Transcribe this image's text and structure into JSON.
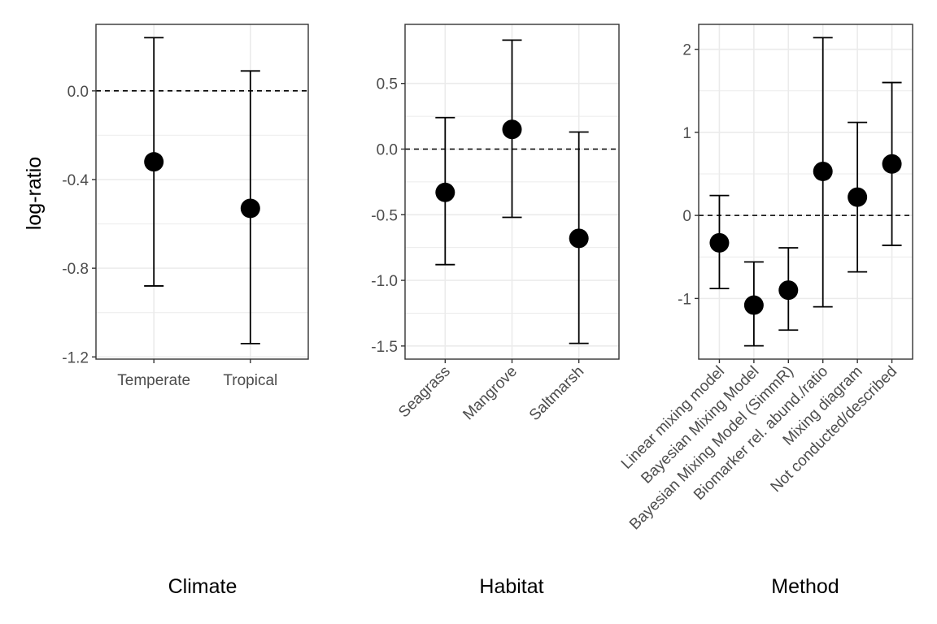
{
  "ylabel": "log-ratio",
  "chart_data": [
    {
      "type": "scatter",
      "error_bars": true,
      "xlabel": "Climate",
      "categories": [
        "Temperate",
        "Tropical"
      ],
      "values": [
        -0.32,
        -0.53
      ],
      "lower": [
        -0.88,
        -1.14
      ],
      "upper": [
        0.24,
        0.09
      ],
      "ylim": [
        -1.21,
        0.3
      ],
      "yticks": [
        -1.2,
        -0.8,
        -0.4,
        0.0
      ],
      "ytick_labels": [
        "-1.2",
        "-0.8",
        "-0.4",
        "0.0"
      ],
      "reference_line": 0,
      "x_label_rotation": 0,
      "grid": true
    },
    {
      "type": "scatter",
      "error_bars": true,
      "xlabel": "Habitat",
      "categories": [
        "Seagrass",
        "Mangrove",
        "Saltmarsh"
      ],
      "values": [
        -0.33,
        0.15,
        -0.68
      ],
      "lower": [
        -0.88,
        -0.52,
        -1.48
      ],
      "upper": [
        0.24,
        0.83,
        0.13
      ],
      "ylim": [
        -1.6,
        0.95
      ],
      "yticks": [
        -1.5,
        -1.0,
        -0.5,
        0.0,
        0.5
      ],
      "ytick_labels": [
        "-1.5",
        "-1.0",
        "-0.5",
        "0.0",
        "0.5"
      ],
      "reference_line": 0,
      "x_label_rotation": -45,
      "grid": true
    },
    {
      "type": "scatter",
      "error_bars": true,
      "xlabel": "Method",
      "categories": [
        "Linear mixing model",
        "Bayesian Mixing Model",
        "Bayesian Mixing Model (SimmR)",
        "Biomarker rel. abund./ratio",
        "Mixing diagram",
        "Not conducted/described"
      ],
      "values": [
        -0.33,
        -1.08,
        -0.9,
        0.53,
        0.22,
        0.62
      ],
      "lower": [
        -0.88,
        -1.57,
        -1.38,
        -1.1,
        -0.68,
        -0.36
      ],
      "upper": [
        0.24,
        -0.56,
        -0.39,
        2.14,
        1.12,
        1.6
      ],
      "ylim": [
        -1.73,
        2.3
      ],
      "yticks": [
        -1,
        0,
        1,
        2
      ],
      "ytick_labels": [
        "-1",
        "0",
        "1",
        "2"
      ],
      "reference_line": 0,
      "x_label_rotation": -45,
      "grid": true
    }
  ]
}
